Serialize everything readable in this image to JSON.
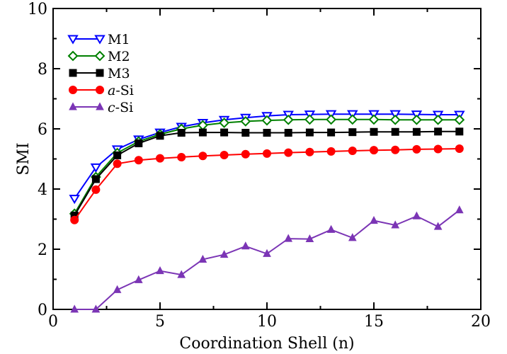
{
  "chart_data": {
    "type": "line",
    "xlabel": "Coordination Shell (n)",
    "ylabel": "SMI",
    "xlim": [
      0,
      20
    ],
    "ylim": [
      0,
      10
    ],
    "x_ticks": [
      0,
      5,
      10,
      15,
      20
    ],
    "y_ticks": [
      0,
      2,
      4,
      6,
      8,
      10
    ],
    "grid": false,
    "legend_position": "top-left",
    "x": [
      1,
      2,
      3,
      4,
      5,
      6,
      7,
      8,
      9,
      10,
      11,
      12,
      13,
      14,
      15,
      16,
      17,
      18,
      19
    ],
    "series": [
      {
        "name": "M1",
        "label_parts": [
          {
            "text": "M1",
            "italic": false
          }
        ],
        "color": "#0000ff",
        "marker": "triangle-down-open",
        "values": [
          3.68,
          4.72,
          5.32,
          5.65,
          5.88,
          6.07,
          6.2,
          6.3,
          6.37,
          6.43,
          6.47,
          6.48,
          6.49,
          6.49,
          6.49,
          6.49,
          6.48,
          6.47,
          6.47
        ]
      },
      {
        "name": "M2",
        "label_parts": [
          {
            "text": "M2",
            "italic": false
          }
        ],
        "color": "#008000",
        "marker": "diamond-open",
        "values": [
          3.18,
          4.4,
          5.2,
          5.58,
          5.82,
          6.0,
          6.12,
          6.2,
          6.25,
          6.28,
          6.3,
          6.31,
          6.31,
          6.31,
          6.31,
          6.3,
          6.3,
          6.3,
          6.3
        ]
      },
      {
        "name": "M3",
        "label_parts": [
          {
            "text": "M3",
            "italic": false
          }
        ],
        "color": "#000000",
        "marker": "square",
        "values": [
          3.12,
          4.33,
          5.12,
          5.52,
          5.77,
          5.87,
          5.88,
          5.88,
          5.87,
          5.87,
          5.87,
          5.88,
          5.88,
          5.89,
          5.9,
          5.9,
          5.9,
          5.91,
          5.91
        ]
      },
      {
        "name": "a-Si",
        "label_parts": [
          {
            "text": "a",
            "italic": true
          },
          {
            "text": "-Si",
            "italic": false
          }
        ],
        "color": "#ff0000",
        "marker": "circle",
        "values": [
          2.97,
          3.98,
          4.84,
          4.96,
          5.02,
          5.06,
          5.1,
          5.13,
          5.16,
          5.18,
          5.21,
          5.23,
          5.25,
          5.27,
          5.29,
          5.3,
          5.32,
          5.33,
          5.34
        ]
      },
      {
        "name": "c-Si",
        "label_parts": [
          {
            "text": "c",
            "italic": true
          },
          {
            "text": "-Si",
            "italic": false
          }
        ],
        "color": "#7b35b5",
        "marker": "triangle-up",
        "values": [
          0.0,
          0.0,
          0.65,
          0.98,
          1.28,
          1.15,
          1.66,
          1.82,
          2.1,
          1.85,
          2.35,
          2.34,
          2.65,
          2.38,
          2.95,
          2.8,
          3.1,
          2.75,
          3.3
        ]
      }
    ]
  }
}
